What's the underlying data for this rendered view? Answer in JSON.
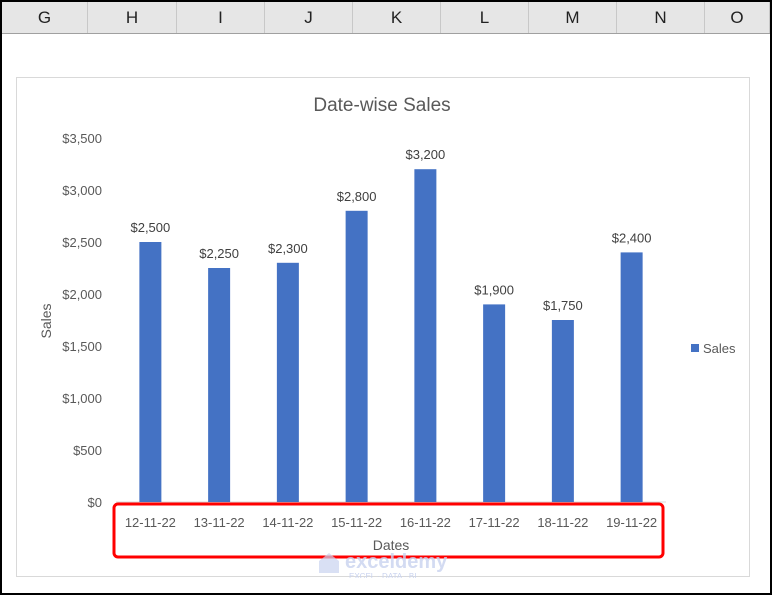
{
  "columns": [
    "G",
    "H",
    "I",
    "J",
    "K",
    "L",
    "M",
    "N",
    "O"
  ],
  "chart_data": {
    "type": "bar",
    "title": "Date-wise Sales",
    "xlabel": "Dates",
    "ylabel": "Sales",
    "categories": [
      "12-11-22",
      "13-11-22",
      "14-11-22",
      "15-11-22",
      "16-11-22",
      "17-11-22",
      "18-11-22",
      "19-11-22"
    ],
    "series": [
      {
        "name": "Sales",
        "values": [
          2500,
          2250,
          2300,
          2800,
          3200,
          1900,
          1750,
          2400
        ],
        "color": "#4472c4"
      }
    ],
    "data_labels": [
      "$2,500",
      "$2,250",
      "$2,300",
      "$2,800",
      "$3,200",
      "$1,900",
      "$1,750",
      "$2,400"
    ],
    "ylim": [
      0,
      3500
    ],
    "yticks": [
      0,
      500,
      1000,
      1500,
      2000,
      2500,
      3000,
      3500
    ],
    "ytick_labels": [
      "$0",
      "$500",
      "$1,000",
      "$1,500",
      "$2,000",
      "$2,500",
      "$3,000",
      "$3,500"
    ],
    "grid": false,
    "legend": "right",
    "highlight_color": "#ff0000"
  },
  "watermark": {
    "name": "exceldemy",
    "tagline": "EXCEL · DATA · BI"
  }
}
